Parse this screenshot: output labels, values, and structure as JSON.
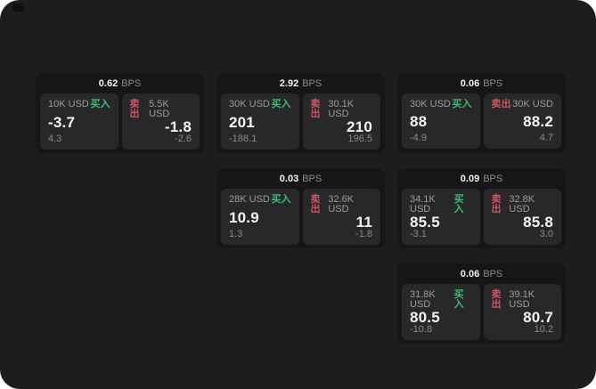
{
  "theme": {
    "page_bg": "#1d1d1f",
    "card_bg": "#161618",
    "panel_bg": "#28282b",
    "buy_color": "#3dba74",
    "sell_color": "#d05465",
    "primary_text": "#f5f5f5",
    "muted_text": "#8b8b8d"
  },
  "labels": {
    "bps": "BPS",
    "buy": "买入",
    "sell": "卖出"
  },
  "cards": [
    {
      "bps": "0.62",
      "buy": {
        "amount": "10K USD",
        "value": "-3.7",
        "sub": "4.3"
      },
      "sell": {
        "amount": "5.5K USD",
        "value": "-1.8",
        "sub": "-2.6"
      }
    },
    {
      "bps": "2.92",
      "buy": {
        "amount": "30K USD",
        "value": "201",
        "sub": "-188.1"
      },
      "sell": {
        "amount": "30.1K USD",
        "value": "210",
        "sub": "196.5"
      }
    },
    {
      "bps": "0.06",
      "buy": {
        "amount": "30K USD",
        "value": "88",
        "sub": "-4.9"
      },
      "sell": {
        "amount": "30K USD",
        "value": "88.2",
        "sub": "4.7"
      }
    },
    {
      "bps": "0.03",
      "buy": {
        "amount": "28K USD",
        "value": "10.9",
        "sub": "1.3"
      },
      "sell": {
        "amount": "32.6K USD",
        "value": "11",
        "sub": "-1.8"
      }
    },
    {
      "bps": "0.09",
      "buy": {
        "amount": "34.1K USD",
        "value": "85.5",
        "sub": "-3.1"
      },
      "sell": {
        "amount": "32.8K USD",
        "value": "85.8",
        "sub": "3.0"
      }
    },
    {
      "bps": "0.06",
      "buy": {
        "amount": "31.8K USD",
        "value": "80.5",
        "sub": "-10.8"
      },
      "sell": {
        "amount": "39.1K USD",
        "value": "80.7",
        "sub": "10.2"
      }
    }
  ]
}
